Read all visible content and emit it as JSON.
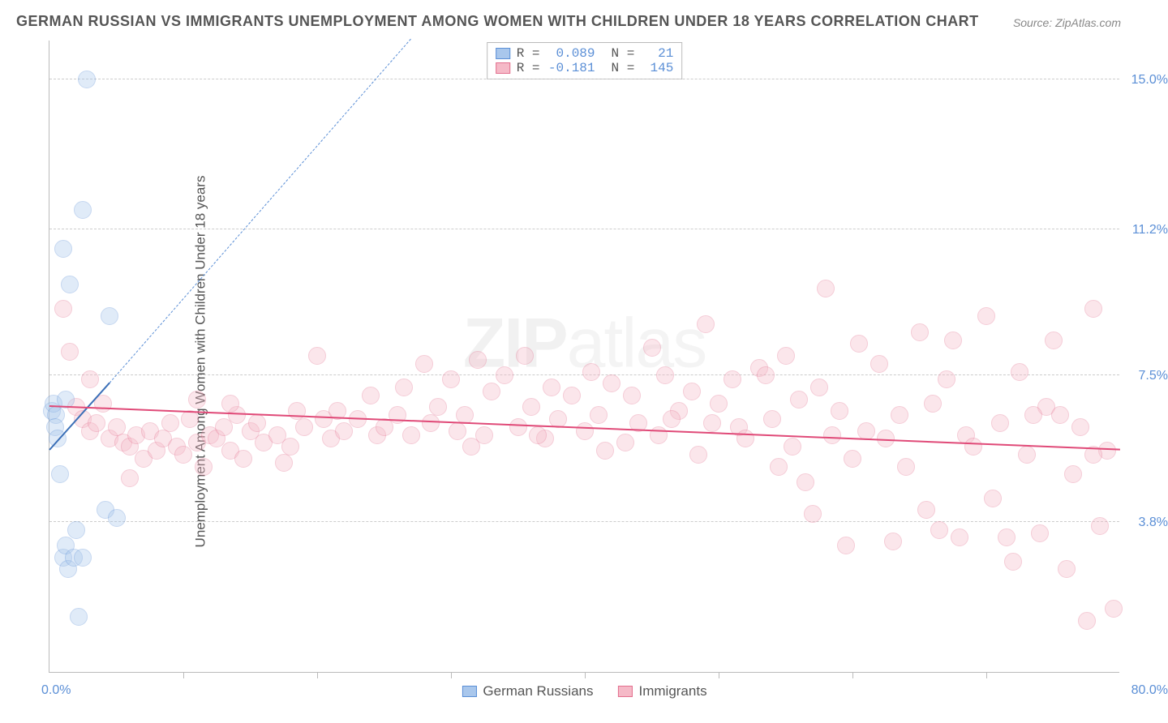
{
  "title": "GERMAN RUSSIAN VS IMMIGRANTS UNEMPLOYMENT AMONG WOMEN WITH CHILDREN UNDER 18 YEARS CORRELATION CHART",
  "source": "Source: ZipAtlas.com",
  "ylabel": "Unemployment Among Women with Children Under 18 years",
  "watermark_a": "ZIP",
  "watermark_b": "atlas",
  "chart": {
    "type": "scatter",
    "xlim": [
      0,
      80
    ],
    "ylim": [
      0,
      16
    ],
    "x_ticks_minor": [
      10,
      20,
      30,
      40,
      50,
      60,
      70
    ],
    "y_gridlines": [
      3.8,
      7.5,
      11.2,
      15.0
    ],
    "y_tick_labels": [
      "3.8%",
      "7.5%",
      "11.2%",
      "15.0%"
    ],
    "x_min_label": "0.0%",
    "x_max_label": "80.0%",
    "background_color": "#ffffff",
    "grid_color": "#cccccc",
    "axis_color": "#bbbbbb",
    "tick_label_color": "#5b8fd6",
    "marker_radius": 11,
    "marker_opacity": 0.35,
    "series": [
      {
        "name": "German Russians",
        "fill": "#a9c7ec",
        "stroke": "#5b8fd6",
        "R": "0.089",
        "N": "21",
        "trend": {
          "x1": 0,
          "y1": 5.6,
          "x2": 4.5,
          "y2": 7.3,
          "dash": false,
          "color": "#3a6fb7",
          "width": 2
        },
        "trend_ext": {
          "x1": 4.5,
          "y1": 7.3,
          "x2": 27,
          "y2": 16,
          "dash": true,
          "color": "#5b8fd6",
          "width": 1
        },
        "points": [
          [
            0.2,
            6.6
          ],
          [
            0.3,
            6.8
          ],
          [
            0.5,
            6.5
          ],
          [
            0.4,
            6.2
          ],
          [
            0.6,
            5.9
          ],
          [
            0.8,
            5.0
          ],
          [
            1.0,
            2.9
          ],
          [
            1.2,
            3.2
          ],
          [
            1.4,
            2.6
          ],
          [
            1.8,
            2.9
          ],
          [
            2.2,
            1.4
          ],
          [
            2.5,
            2.9
          ],
          [
            4.2,
            4.1
          ],
          [
            5.0,
            3.9
          ],
          [
            2.8,
            15.0
          ],
          [
            2.5,
            11.7
          ],
          [
            1.0,
            10.7
          ],
          [
            1.5,
            9.8
          ],
          [
            4.5,
            9.0
          ],
          [
            2.0,
            3.6
          ],
          [
            1.2,
            6.9
          ]
        ]
      },
      {
        "name": "Immigrants",
        "fill": "#f5b9c7",
        "stroke": "#e36f8e",
        "R": "-0.181",
        "N": "145",
        "trend": {
          "x1": 0,
          "y1": 6.7,
          "x2": 80,
          "y2": 5.6,
          "dash": false,
          "color": "#e04a78",
          "width": 2
        },
        "points": [
          [
            1.5,
            8.1
          ],
          [
            2.0,
            6.7
          ],
          [
            2.5,
            6.4
          ],
          [
            3.0,
            6.1
          ],
          [
            3.5,
            6.3
          ],
          [
            4.0,
            6.8
          ],
          [
            4.5,
            5.9
          ],
          [
            5.0,
            6.2
          ],
          [
            5.5,
            5.8
          ],
          [
            6.0,
            5.7
          ],
          [
            6.5,
            6.0
          ],
          [
            7.0,
            5.4
          ],
          [
            7.5,
            6.1
          ],
          [
            8.0,
            5.6
          ],
          [
            8.5,
            5.9
          ],
          [
            9.0,
            6.3
          ],
          [
            9.5,
            5.7
          ],
          [
            10.0,
            5.5
          ],
          [
            10.5,
            6.4
          ],
          [
            11.0,
            5.8
          ],
          [
            11.5,
            5.2
          ],
          [
            12.0,
            6.0
          ],
          [
            12.5,
            5.9
          ],
          [
            13.0,
            6.2
          ],
          [
            13.5,
            5.6
          ],
          [
            14.0,
            6.5
          ],
          [
            14.5,
            5.4
          ],
          [
            15.0,
            6.1
          ],
          [
            15.5,
            6.3
          ],
          [
            16.0,
            5.8
          ],
          [
            17.0,
            6.0
          ],
          [
            18.0,
            5.7
          ],
          [
            18.5,
            6.6
          ],
          [
            19.0,
            6.2
          ],
          [
            20.0,
            8.0
          ],
          [
            20.5,
            6.4
          ],
          [
            21.0,
            5.9
          ],
          [
            22.0,
            6.1
          ],
          [
            23.0,
            6.4
          ],
          [
            24.0,
            7.0
          ],
          [
            24.5,
            6.0
          ],
          [
            25.0,
            6.2
          ],
          [
            26.0,
            6.5
          ],
          [
            27.0,
            6.0
          ],
          [
            28.0,
            7.8
          ],
          [
            28.5,
            6.3
          ],
          [
            29.0,
            6.7
          ],
          [
            30.0,
            7.4
          ],
          [
            30.5,
            6.1
          ],
          [
            31.0,
            6.5
          ],
          [
            32.0,
            7.9
          ],
          [
            32.5,
            6.0
          ],
          [
            33.0,
            7.1
          ],
          [
            34.0,
            7.5
          ],
          [
            35.0,
            6.2
          ],
          [
            35.5,
            8.0
          ],
          [
            36.0,
            6.7
          ],
          [
            37.0,
            5.9
          ],
          [
            37.5,
            7.2
          ],
          [
            38.0,
            6.4
          ],
          [
            39.0,
            7.0
          ],
          [
            40.0,
            6.1
          ],
          [
            40.5,
            7.6
          ],
          [
            41.0,
            6.5
          ],
          [
            42.0,
            7.3
          ],
          [
            43.0,
            5.8
          ],
          [
            43.5,
            7.0
          ],
          [
            44.0,
            6.3
          ],
          [
            45.0,
            8.2
          ],
          [
            45.5,
            6.0
          ],
          [
            46.0,
            7.5
          ],
          [
            47.0,
            6.6
          ],
          [
            48.0,
            7.1
          ],
          [
            48.5,
            5.5
          ],
          [
            49.0,
            8.8
          ],
          [
            50.0,
            6.8
          ],
          [
            51.0,
            7.4
          ],
          [
            51.5,
            6.2
          ],
          [
            52.0,
            5.9
          ],
          [
            53.0,
            7.7
          ],
          [
            54.0,
            6.4
          ],
          [
            55.0,
            8.0
          ],
          [
            55.5,
            5.7
          ],
          [
            56.0,
            6.9
          ],
          [
            57.0,
            4.0
          ],
          [
            57.5,
            7.2
          ],
          [
            58.0,
            9.7
          ],
          [
            58.5,
            6.0
          ],
          [
            59.0,
            6.6
          ],
          [
            60.0,
            5.4
          ],
          [
            60.5,
            8.3
          ],
          [
            61.0,
            6.1
          ],
          [
            62.0,
            7.8
          ],
          [
            63.0,
            3.3
          ],
          [
            63.5,
            6.5
          ],
          [
            64.0,
            5.2
          ],
          [
            65.0,
            8.6
          ],
          [
            65.5,
            4.1
          ],
          [
            66.0,
            6.8
          ],
          [
            67.0,
            7.4
          ],
          [
            68.0,
            3.4
          ],
          [
            68.5,
            6.0
          ],
          [
            69.0,
            5.7
          ],
          [
            70.0,
            9.0
          ],
          [
            70.5,
            4.4
          ],
          [
            71.0,
            6.3
          ],
          [
            72.0,
            2.8
          ],
          [
            72.5,
            7.6
          ],
          [
            73.0,
            5.5
          ],
          [
            74.0,
            3.5
          ],
          [
            74.5,
            6.7
          ],
          [
            75.0,
            8.4
          ],
          [
            76.0,
            2.6
          ],
          [
            76.5,
            5.0
          ],
          [
            77.0,
            6.2
          ],
          [
            78.0,
            9.2
          ],
          [
            78.5,
            3.7
          ],
          [
            79.0,
            5.6
          ],
          [
            79.5,
            1.6
          ],
          [
            1.0,
            9.2
          ],
          [
            3.0,
            7.4
          ],
          [
            6.0,
            4.9
          ],
          [
            53.5,
            7.5
          ],
          [
            59.5,
            3.2
          ],
          [
            62.5,
            5.9
          ],
          [
            66.5,
            3.6
          ],
          [
            71.5,
            3.4
          ],
          [
            75.5,
            6.5
          ],
          [
            77.5,
            1.3
          ],
          [
            78.0,
            5.5
          ],
          [
            11.0,
            6.9
          ],
          [
            13.5,
            6.8
          ],
          [
            17.5,
            5.3
          ],
          [
            21.5,
            6.6
          ],
          [
            26.5,
            7.2
          ],
          [
            31.5,
            5.7
          ],
          [
            36.5,
            6.0
          ],
          [
            41.5,
            5.6
          ],
          [
            46.5,
            6.4
          ],
          [
            56.5,
            4.8
          ],
          [
            67.5,
            8.4
          ],
          [
            73.5,
            6.5
          ],
          [
            54.5,
            5.2
          ],
          [
            49.5,
            6.3
          ]
        ]
      }
    ]
  },
  "legend_top": {
    "r_label": "R =",
    "n_label": "N ="
  },
  "legend_bottom": {
    "items": [
      "German Russians",
      "Immigrants"
    ]
  }
}
